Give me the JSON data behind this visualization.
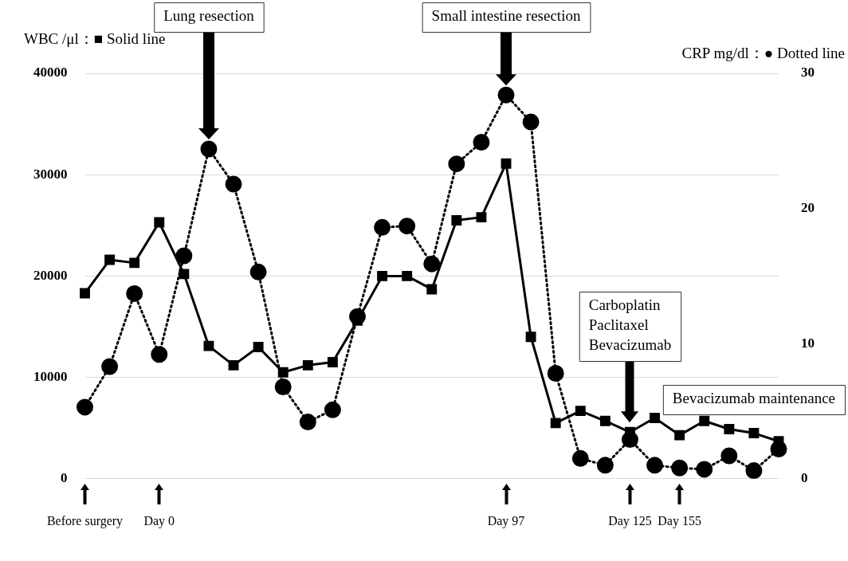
{
  "chart_data": {
    "type": "line",
    "categories": [
      "Before surgery",
      null,
      null,
      "Day 0",
      null,
      null,
      null,
      null,
      null,
      null,
      null,
      null,
      null,
      null,
      null,
      null,
      null,
      "Day 97",
      null,
      null,
      null,
      null,
      "Day 125",
      null,
      "Day 155",
      null,
      null,
      null,
      null
    ],
    "ylabel": "WBC /μl：■ Solid line",
    "y2label": "CRP mg/dl：● Dotted line",
    "series": [
      {
        "color": "#000000",
        "marker": "square",
        "line_style": "solid",
        "values": [
          18300,
          21600,
          21300,
          25300,
          20200,
          13100,
          11200,
          13000,
          10500,
          11200,
          11500,
          15600,
          20000,
          20000,
          18700,
          25500,
          25800,
          31100,
          14000,
          5500,
          6700,
          5700,
          4600,
          6000,
          4300,
          5700,
          4900,
          4500,
          3700
        ]
      },
      {
        "color": "#000000",
        "marker": "circle",
        "line_style": "dotted",
        "axis": "y2",
        "values": [
          5.3,
          8.3,
          13.7,
          9.2,
          16.5,
          24.4,
          21.8,
          15.3,
          6.8,
          4.2,
          5.1,
          12.0,
          18.6,
          18.7,
          15.9,
          23.3,
          24.9,
          28.4,
          26.4,
          7.8,
          1.5,
          1.0,
          2.9,
          1.0,
          0.8,
          0.7,
          1.7,
          0.6,
          2.2
        ]
      }
    ],
    "ylim": [
      0,
      40000
    ],
    "yticks": [
      0,
      10000,
      20000,
      30000,
      40000
    ],
    "y2lim": [
      0,
      30
    ],
    "y2ticks": [
      0,
      10,
      20,
      30
    ],
    "grid": "y",
    "legend": false,
    "annotations": [
      "Lung resection",
      "Small intestine resection",
      "Carboplatin\nPaclitaxel\nBevacizumab",
      "Bevacizumab maintenance"
    ]
  }
}
